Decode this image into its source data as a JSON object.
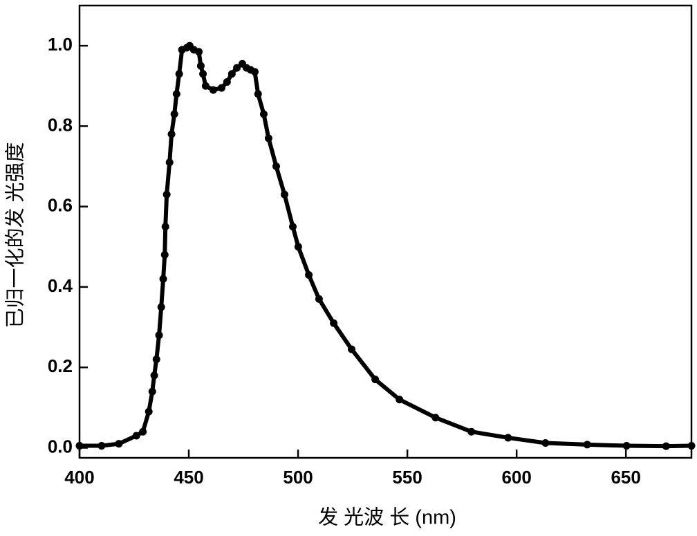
{
  "chart_data": {
    "type": "line",
    "xlabel": "发 光波 长 (nm)",
    "ylabel": "已归一化的发 光强度",
    "color": "#000000",
    "x": [
      400,
      410.1,
      418,
      426,
      429,
      431.7,
      433.3,
      434.2,
      435.2,
      436.4,
      437.4,
      438.3,
      439,
      439.3,
      439.9,
      441.2,
      442.1,
      443.4,
      444.4,
      445.6,
      446.9,
      449.1,
      450.4,
      452.3,
      454.6,
      455.5,
      456.5,
      457.7,
      461.2,
      465,
      467.5,
      469.7,
      472,
      474.5,
      476.4,
      478.3,
      480.2,
      481.7,
      484.3,
      486.5,
      490,
      493.8,
      497.6,
      500.1,
      504.9,
      509.6,
      516.3,
      524.5,
      535.3,
      546.4,
      562.9,
      579.3,
      596.1,
      613.2,
      632.3,
      650.3,
      668.4,
      680
    ],
    "values": [
      0.005,
      0.005,
      0.01,
      0.03,
      0.04,
      0.09,
      0.14,
      0.18,
      0.22,
      0.28,
      0.35,
      0.42,
      0.48,
      0.55,
      0.63,
      0.71,
      0.78,
      0.83,
      0.88,
      0.93,
      0.99,
      0.995,
      1.0,
      0.99,
      0.985,
      0.95,
      0.93,
      0.9,
      0.89,
      0.895,
      0.91,
      0.93,
      0.945,
      0.955,
      0.945,
      0.94,
      0.935,
      0.88,
      0.83,
      0.77,
      0.7,
      0.63,
      0.55,
      0.5,
      0.43,
      0.37,
      0.31,
      0.245,
      0.17,
      0.12,
      0.075,
      0.04,
      0.025,
      0.012,
      0.008,
      0.005,
      0.004,
      0.005
    ],
    "xlim": [
      400,
      680
    ],
    "ylim": [
      -0.025,
      1.1
    ],
    "xticks": [
      400,
      450,
      500,
      550,
      600,
      650
    ],
    "yticks": [
      {
        "value": 0,
        "label": "0.0"
      },
      0.2,
      0.4,
      0.6,
      0.8,
      {
        "value": 1,
        "label": "1.0"
      }
    ]
  }
}
